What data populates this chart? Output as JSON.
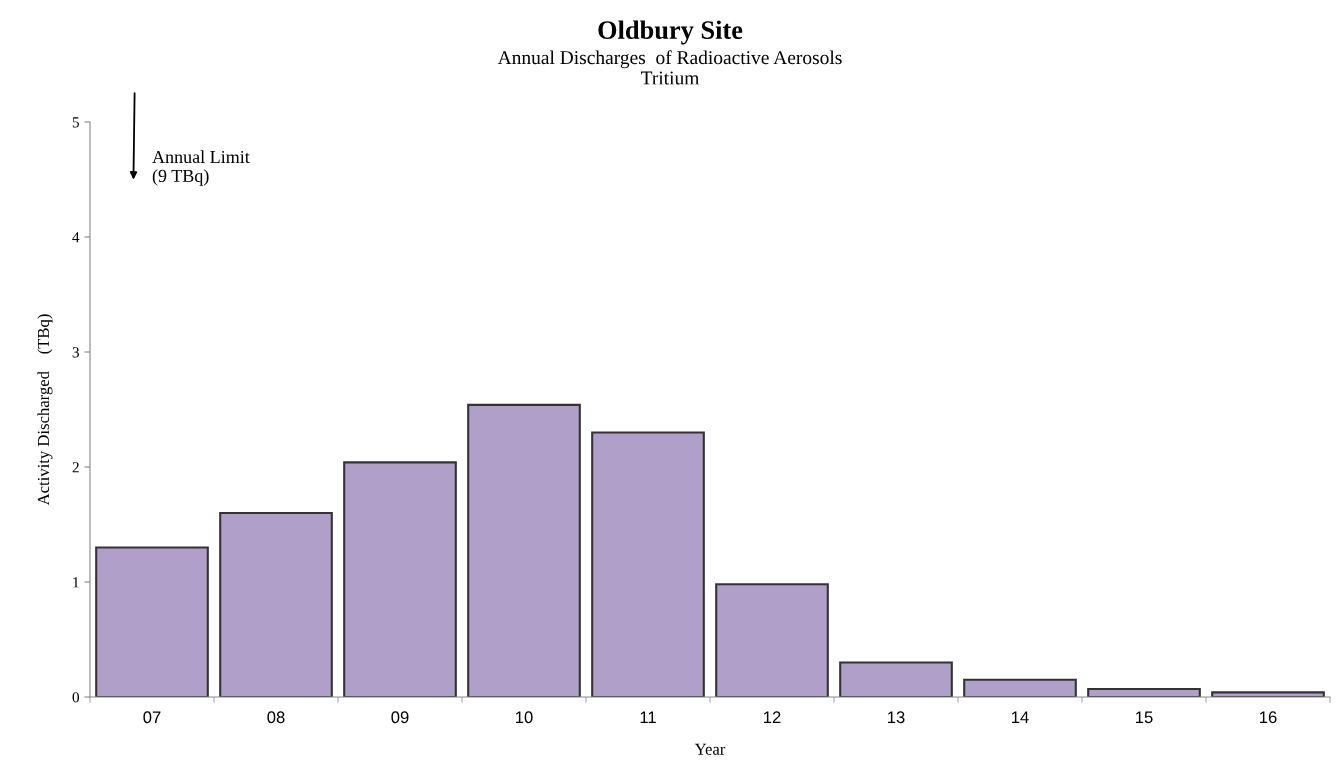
{
  "chart_data": {
    "type": "bar",
    "title": "Oldbury Site",
    "subtitle": "Annual Discharges  of Radioactive Aerosols\nTritium",
    "xlabel": "Year",
    "ylabel": "Activity Discharged    (TBq)",
    "categories": [
      "07",
      "08",
      "09",
      "10",
      "11",
      "12",
      "13",
      "14",
      "15",
      "16"
    ],
    "values": [
      1.3,
      1.6,
      2.04,
      2.54,
      2.3,
      0.98,
      0.3,
      0.15,
      0.07,
      0.04
    ],
    "color": "#b09fc8",
    "ylim": [
      0,
      5
    ],
    "yticks": [
      0,
      1,
      2,
      3,
      4,
      5
    ],
    "grid": false,
    "annotations": [
      "Annual Limit\n(9 TBq)"
    ]
  }
}
